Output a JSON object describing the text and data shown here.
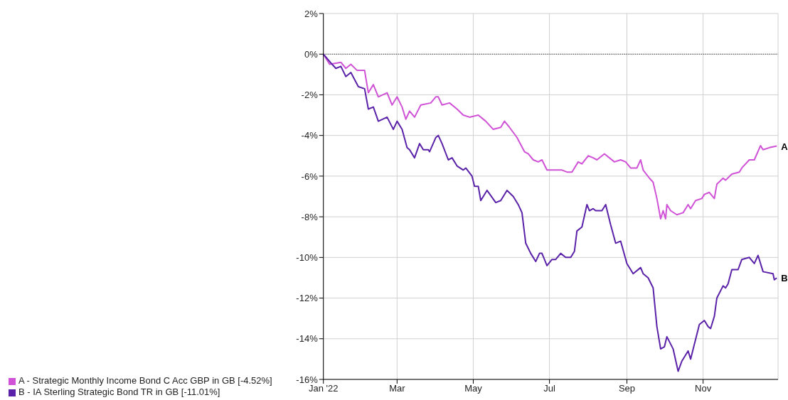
{
  "chart_data": {
    "type": "line",
    "xlim": [
      "2022-01-01",
      "2022-12-31"
    ],
    "xticks": [
      {
        "value": "2022-01-01",
        "label": "Jan '22"
      },
      {
        "value": "2022-03-01",
        "label": "Mar"
      },
      {
        "value": "2022-05-01",
        "label": "May"
      },
      {
        "value": "2022-07-01",
        "label": "Jul"
      },
      {
        "value": "2022-09-01",
        "label": "Sep"
      },
      {
        "value": "2022-11-01",
        "label": "Nov"
      }
    ],
    "ylim": [
      -16,
      2
    ],
    "yticks": [
      {
        "value": -16,
        "label": "-16%"
      },
      {
        "value": -14,
        "label": "-14%"
      },
      {
        "value": -12,
        "label": "-12%"
      },
      {
        "value": -10,
        "label": "-10%"
      },
      {
        "value": -8,
        "label": "-8%"
      },
      {
        "value": -6,
        "label": "-6%"
      },
      {
        "value": -4,
        "label": "-4%"
      },
      {
        "value": -2,
        "label": "-2%"
      },
      {
        "value": 0,
        "label": "0%"
      },
      {
        "value": 2,
        "label": "2%"
      }
    ],
    "grid": true,
    "legend": "bottom",
    "marker": "none",
    "line_style": "solid",
    "ref_lines": [
      {
        "axis": "y",
        "value": 0,
        "color": "#000000",
        "line_style": "dotted"
      }
    ],
    "annotations": [
      {
        "text": "A",
        "x": "2022-12-30",
        "y": -4.52
      },
      {
        "text": "B",
        "x": "2022-12-30",
        "y": -11.01
      }
    ],
    "series": [
      {
        "name": "A - Strategic Monthly Income Bond C Acc GBP in GB [-4.52%]",
        "color": "#d052d6",
        "x": [
          "2022-01-01",
          "2022-01-06",
          "2022-01-15",
          "2022-01-19",
          "2022-01-23",
          "2022-01-28",
          "2022-02-03",
          "2022-02-06",
          "2022-02-10",
          "2022-02-14",
          "2022-02-21",
          "2022-02-25",
          "2022-03-01",
          "2022-03-05",
          "2022-03-08",
          "2022-03-11",
          "2022-03-15",
          "2022-03-20",
          "2022-03-28",
          "2022-04-01",
          "2022-04-03",
          "2022-04-06",
          "2022-04-12",
          "2022-04-18",
          "2022-04-23",
          "2022-04-28",
          "2022-05-05",
          "2022-05-11",
          "2022-05-17",
          "2022-05-23",
          "2022-05-26",
          "2022-05-30",
          "2022-06-05",
          "2022-06-11",
          "2022-06-14",
          "2022-06-18",
          "2022-06-22",
          "2022-06-25",
          "2022-06-29",
          "2022-07-05",
          "2022-07-11",
          "2022-07-15",
          "2022-07-19",
          "2022-07-24",
          "2022-07-27",
          "2022-08-01",
          "2022-08-05",
          "2022-08-08",
          "2022-08-14",
          "2022-08-22",
          "2022-08-27",
          "2022-08-31",
          "2022-09-04",
          "2022-09-09",
          "2022-09-12",
          "2022-09-14",
          "2022-09-19",
          "2022-09-22",
          "2022-09-25",
          "2022-09-28",
          "2022-09-30",
          "2022-10-02",
          "2022-10-03",
          "2022-10-06",
          "2022-10-11",
          "2022-10-16",
          "2022-10-20",
          "2022-10-22",
          "2022-10-26",
          "2022-10-31",
          "2022-11-02",
          "2022-11-06",
          "2022-11-10",
          "2022-11-12",
          "2022-11-17",
          "2022-11-19",
          "2022-11-24",
          "2022-11-30",
          "2022-12-02",
          "2022-12-08",
          "2022-12-12",
          "2022-12-17",
          "2022-12-19",
          "2022-12-24",
          "2022-12-30"
        ],
        "values": [
          0,
          -0.5,
          -0.4,
          -0.7,
          -0.5,
          -0.8,
          -0.8,
          -1.9,
          -1.5,
          -2.1,
          -1.9,
          -2.5,
          -2.1,
          -2.6,
          -3.2,
          -2.8,
          -3.1,
          -2.5,
          -2.4,
          -2.1,
          -2.1,
          -2.5,
          -2.4,
          -2.7,
          -3.0,
          -3.1,
          -3.0,
          -3.3,
          -3.7,
          -3.6,
          -3.3,
          -3.6,
          -4.1,
          -4.8,
          -4.9,
          -5.2,
          -5.3,
          -5.2,
          -5.7,
          -5.7,
          -5.7,
          -5.8,
          -5.8,
          -5.3,
          -5.4,
          -5.0,
          -5.1,
          -5.2,
          -4.9,
          -5.3,
          -5.2,
          -5.3,
          -5.6,
          -5.6,
          -5.2,
          -5.7,
          -6.1,
          -6.3,
          -7.1,
          -8.1,
          -7.7,
          -8.1,
          -7.4,
          -7.7,
          -7.9,
          -7.8,
          -7.4,
          -7.6,
          -7.2,
          -7.1,
          -6.9,
          -6.8,
          -7.1,
          -6.4,
          -6.1,
          -6.2,
          -5.9,
          -5.8,
          -5.6,
          -5.2,
          -5.2,
          -4.5,
          -4.7,
          -4.6,
          -4.52
        ]
      },
      {
        "name": "B - IA Sterling Strategic Bond TR in GB [-11.01%]",
        "color": "#5a22a8",
        "x": [
          "2022-01-01",
          "2022-01-08",
          "2022-01-11",
          "2022-01-15",
          "2022-01-19",
          "2022-01-23",
          "2022-01-29",
          "2022-02-03",
          "2022-02-06",
          "2022-02-10",
          "2022-02-14",
          "2022-02-21",
          "2022-02-26",
          "2022-03-01",
          "2022-03-05",
          "2022-03-09",
          "2022-03-11",
          "2022-03-15",
          "2022-03-19",
          "2022-03-22",
          "2022-03-26",
          "2022-03-27",
          "2022-04-01",
          "2022-04-03",
          "2022-04-06",
          "2022-04-11",
          "2022-04-14",
          "2022-04-18",
          "2022-04-23",
          "2022-04-25",
          "2022-04-30",
          "2022-05-02",
          "2022-05-05",
          "2022-05-07",
          "2022-05-12",
          "2022-05-19",
          "2022-05-23",
          "2022-05-28",
          "2022-06-02",
          "2022-06-06",
          "2022-06-09",
          "2022-06-12",
          "2022-06-16",
          "2022-06-20",
          "2022-06-23",
          "2022-06-25",
          "2022-06-29",
          "2022-07-03",
          "2022-07-06",
          "2022-07-10",
          "2022-07-14",
          "2022-07-18",
          "2022-07-21",
          "2022-07-23",
          "2022-07-27",
          "2022-07-31",
          "2022-08-02",
          "2022-08-05",
          "2022-08-07",
          "2022-08-12",
          "2022-08-15",
          "2022-08-19",
          "2022-08-23",
          "2022-08-27",
          "2022-09-01",
          "2022-09-06",
          "2022-09-12",
          "2022-09-14",
          "2022-09-18",
          "2022-09-22",
          "2022-09-25",
          "2022-09-28",
          "2022-10-01",
          "2022-10-03",
          "2022-10-08",
          "2022-10-12",
          "2022-10-15",
          "2022-10-20",
          "2022-10-22",
          "2022-10-29",
          "2022-11-02",
          "2022-11-05",
          "2022-11-07",
          "2022-11-10",
          "2022-11-12",
          "2022-11-17",
          "2022-11-19",
          "2022-11-21",
          "2022-11-24",
          "2022-11-29",
          "2022-12-02",
          "2022-12-08",
          "2022-12-12",
          "2022-12-15",
          "2022-12-19",
          "2022-12-27",
          "2022-12-28",
          "2022-12-30"
        ],
        "values": [
          0,
          -0.5,
          -0.7,
          -0.6,
          -1.1,
          -0.9,
          -1.6,
          -1.7,
          -2.7,
          -2.6,
          -3.3,
          -3.1,
          -3.7,
          -3.3,
          -3.7,
          -4.6,
          -4.7,
          -5.1,
          -4.4,
          -4.7,
          -4.7,
          -4.8,
          -4.1,
          -4.0,
          -4.4,
          -5.2,
          -5.1,
          -5.5,
          -5.7,
          -5.6,
          -6.0,
          -6.5,
          -6.5,
          -7.2,
          -6.7,
          -7.3,
          -7.2,
          -6.7,
          -7.0,
          -7.4,
          -7.8,
          -9.3,
          -9.8,
          -10.2,
          -9.8,
          -9.8,
          -10.4,
          -10.1,
          -10.1,
          -9.8,
          -10.0,
          -10.0,
          -9.7,
          -8.7,
          -8.5,
          -7.4,
          -7.7,
          -7.6,
          -7.7,
          -7.7,
          -7.4,
          -8.4,
          -9.3,
          -9.2,
          -10.3,
          -10.8,
          -10.5,
          -10.8,
          -11.0,
          -11.5,
          -13.4,
          -14.5,
          -14.4,
          -13.9,
          -14.5,
          -15.6,
          -15.1,
          -14.6,
          -15.0,
          -13.3,
          -13.1,
          -13.4,
          -13.5,
          -12.9,
          -12.0,
          -11.4,
          -11.5,
          -11.3,
          -10.6,
          -10.6,
          -10.1,
          -10.0,
          -10.3,
          -9.9,
          -10.7,
          -10.8,
          -11.1,
          -11.01
        ]
      }
    ]
  }
}
